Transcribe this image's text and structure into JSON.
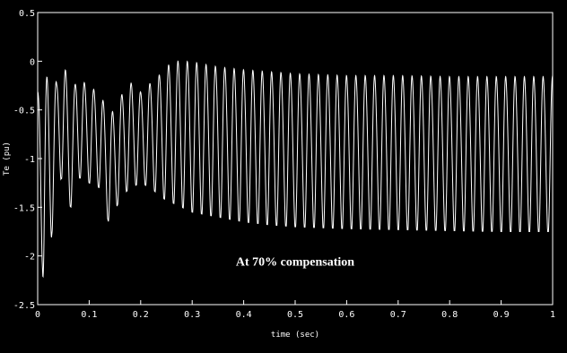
{
  "chart_data": {
    "type": "line",
    "title": "",
    "xlabel": "time (sec)",
    "ylabel": "Te (pu)",
    "xlim": [
      0,
      1
    ],
    "ylim": [
      -2.5,
      0.5
    ],
    "x_ticks": [
      0,
      0.1,
      0.2,
      0.3,
      0.4,
      0.5,
      0.6,
      0.7,
      0.8,
      0.9,
      1
    ],
    "x_tick_labels": [
      "0",
      "0.1",
      "0.2",
      "0.3",
      "0.4",
      "0.5",
      "0.6",
      "0.7",
      "0.8",
      "0.9",
      "1"
    ],
    "y_ticks": [
      0.5,
      0,
      -0.5,
      -1,
      -1.5,
      -2,
      -2.5
    ],
    "y_tick_labels": [
      "0.5",
      "0",
      "-0.5",
      "-1",
      "-1.5",
      "-2",
      "-2.5"
    ],
    "grid": false,
    "annotations": [
      {
        "text": "At 70% compensation",
        "x": 0.5,
        "y": -2.1
      }
    ],
    "series": [
      {
        "color": "#ffffff",
        "approx_oscillation_frequency_hz": 55,
        "x": [
          0,
          0.012,
          0.025,
          0.037,
          0.046,
          0.055,
          0.065,
          0.075,
          0.09,
          0.1,
          0.12,
          0.14,
          0.16,
          0.18,
          0.2,
          0.22,
          0.24,
          0.26,
          0.28,
          0.3,
          0.35,
          0.4,
          0.45,
          0.5,
          0.6,
          0.7,
          0.8,
          0.9,
          1.0
        ],
        "upper_envelope": [
          -0.3,
          -0.15,
          -0.1,
          -0.2,
          0.2,
          -0.1,
          -0.45,
          -0.15,
          -0.2,
          -0.25,
          -0.3,
          -0.55,
          -0.35,
          -0.2,
          -0.3,
          -0.2,
          -0.1,
          0.02,
          0.03,
          0.02,
          -0.03,
          -0.06,
          -0.08,
          -0.1,
          -0.12,
          -0.12,
          -0.13,
          -0.13,
          -0.13
        ],
        "lower_envelope": [
          -1.0,
          -2.45,
          -1.9,
          -1.3,
          -1.2,
          -1.45,
          -1.5,
          -1.2,
          -1.2,
          -1.25,
          -1.3,
          -1.7,
          -1.4,
          -1.3,
          -1.25,
          -1.3,
          -1.4,
          -1.45,
          -1.5,
          -1.55,
          -1.6,
          -1.65,
          -1.68,
          -1.7,
          -1.72,
          -1.73,
          -1.74,
          -1.75,
          -1.75
        ]
      }
    ]
  }
}
